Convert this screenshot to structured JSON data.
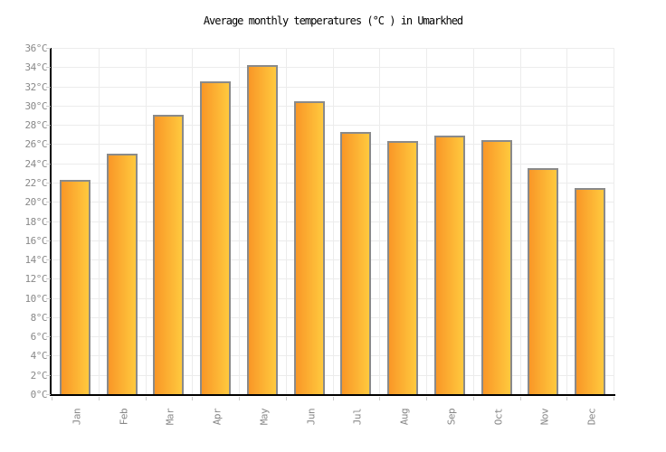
{
  "chart_data": {
    "type": "bar",
    "title": "Average monthly temperatures (°C ) in Umarkhed",
    "categories": [
      "Jan",
      "Feb",
      "Mar",
      "Apr",
      "May",
      "Jun",
      "Jul",
      "Aug",
      "Sep",
      "Oct",
      "Nov",
      "Dec"
    ],
    "values": [
      22.3,
      25.0,
      29.0,
      32.5,
      34.2,
      30.5,
      27.3,
      26.3,
      26.9,
      26.4,
      23.5,
      21.4
    ],
    "unit": "°C",
    "xlabel": "",
    "ylabel": "",
    "ylim": [
      0,
      36
    ],
    "ytick_step": 2,
    "ytick_suffix": "°C",
    "grid": true,
    "legend_position": "none",
    "colors": {
      "background": "#ffffff",
      "title": "#000000",
      "bar_gradient_left": "#f99727",
      "bar_gradient_right": "#ffc93e",
      "bar_border": "#8a8a8a",
      "grid": "#ececec",
      "axis": "#000000",
      "tick": "#cccccc",
      "tick_label": "#888888"
    }
  }
}
